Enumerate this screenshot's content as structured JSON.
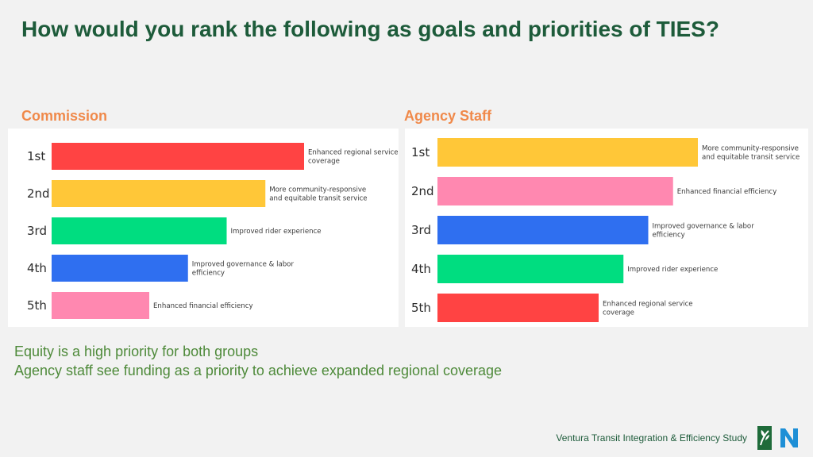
{
  "title": "How would you rank the following as goals and priorities of TIES?",
  "panels": {
    "commission": {
      "label": "Commission"
    },
    "staff": {
      "label": "Agency Staff"
    }
  },
  "notes": [
    "Equity is a high priority for both groups",
    "Agency staff see funding as a priority to achieve expanded regional coverage"
  ],
  "footer": "Ventura Transit Integration & Efficiency Study",
  "chart_data": [
    {
      "type": "bar",
      "title": "Commission",
      "categories": [
        "1st",
        "2nd",
        "3rd",
        "4th",
        "5th"
      ],
      "values": [
        1,
        2,
        3,
        4,
        5
      ],
      "bars": [
        {
          "label": [
            "Enhanced regional service",
            "coverage"
          ],
          "color": "#ff4343",
          "value": 1
        },
        {
          "label": [
            "More community-responsive",
            "and equitable transit service"
          ],
          "color": "#ffc738",
          "value": 2
        },
        {
          "label": [
            "Improved rider experience"
          ],
          "color": "#00dd80",
          "value": 3
        },
        {
          "label": [
            "Improved governance & labor",
            "efficiency"
          ],
          "color": "#2f6ff0",
          "value": 4
        },
        {
          "label": [
            "Enhanced financial efficiency"
          ],
          "color": "#ff88b0",
          "value": 5
        }
      ]
    },
    {
      "type": "bar",
      "title": "Agency Staff",
      "categories": [
        "1st",
        "2nd",
        "3rd",
        "4th",
        "5th"
      ],
      "values": [
        1,
        2,
        3,
        4,
        5
      ],
      "bars": [
        {
          "label": [
            "More community-responsive",
            "and equitable transit service"
          ],
          "color": "#ffc738",
          "value": 1
        },
        {
          "label": [
            "Enhanced financial efficiency"
          ],
          "color": "#ff88b0",
          "value": 2
        },
        {
          "label": [
            "Improved governance & labor",
            "efficiency"
          ],
          "color": "#2f6ff0",
          "value": 3
        },
        {
          "label": [
            "Improved rider experience"
          ],
          "color": "#00dd80",
          "value": 4
        },
        {
          "label": [
            "Enhanced regional service",
            "coverage"
          ],
          "color": "#ff4343",
          "value": 5
        }
      ]
    }
  ]
}
